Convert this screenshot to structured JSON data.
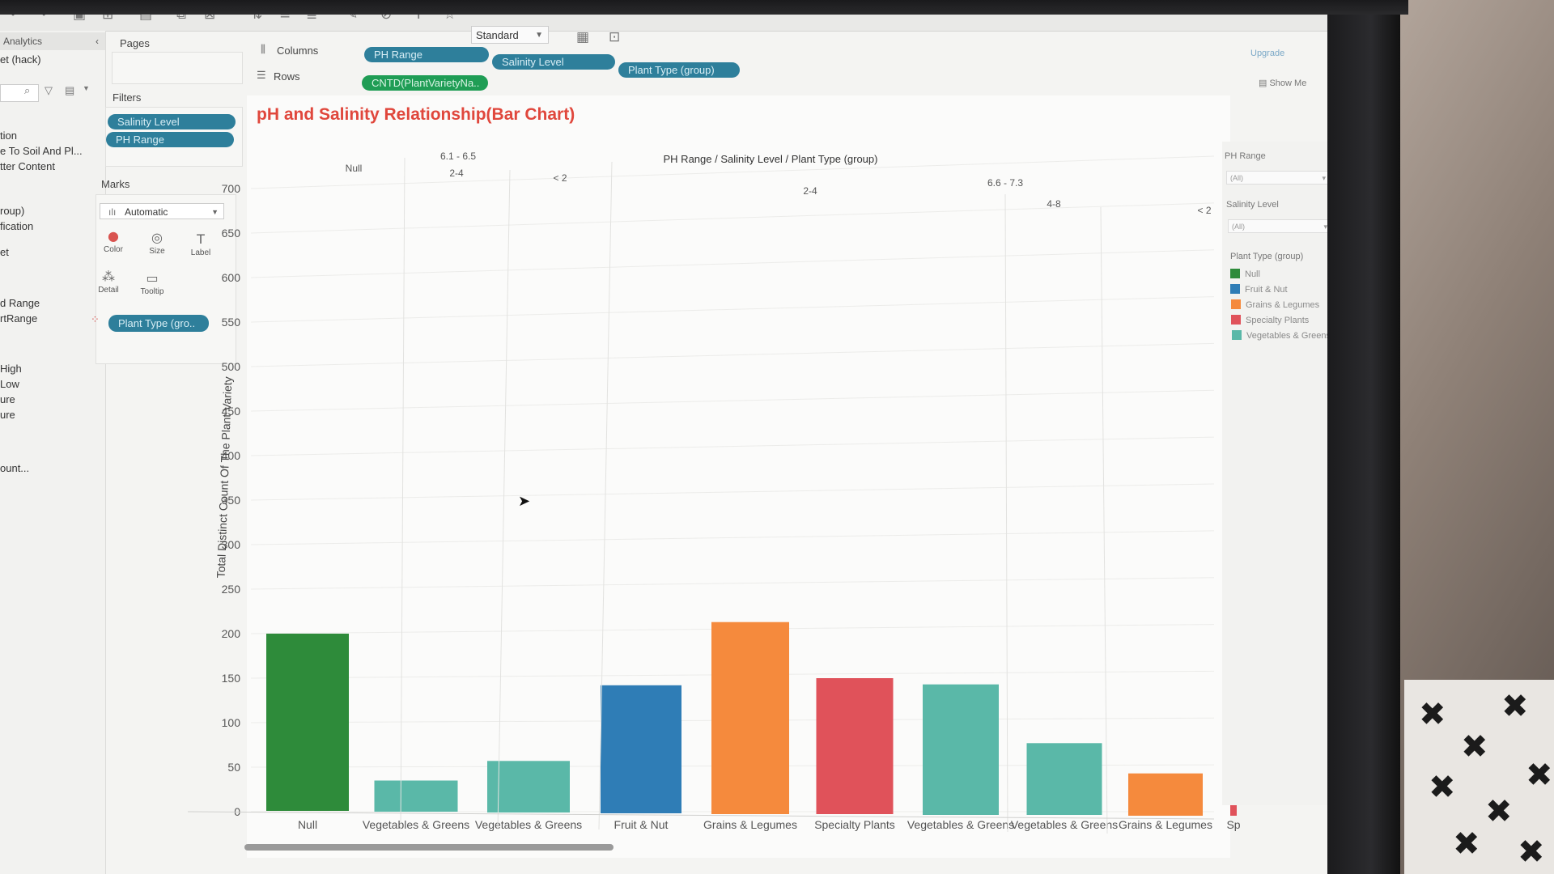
{
  "toolbar": {
    "format_select": "Standard",
    "upgrade": "Upgrade",
    "show_me": "Show Me"
  },
  "data_pane": {
    "analytics_tab": "Analytics",
    "datasource": "et (hack)",
    "fields": [
      "tion",
      "e To Soil And Pl...",
      "tter Content",
      "roup)",
      "fication",
      "et",
      "d Range",
      "rtRange",
      "High",
      "Low",
      "ure",
      "ure",
      "ount..."
    ]
  },
  "pages": {
    "title": "Pages"
  },
  "filters": {
    "title": "Filters",
    "pills": [
      "Salinity Level",
      "PH Range"
    ]
  },
  "marks": {
    "title": "Marks",
    "type": "Automatic",
    "buttons": [
      "Color",
      "Size",
      "Label",
      "Detail",
      "Tooltip"
    ],
    "color_pill": "Plant Type (gro.."
  },
  "shelves": {
    "columns_label": "Columns",
    "rows_label": "Rows",
    "columns": [
      "PH Range",
      "Salinity Level",
      "Plant Type (group)"
    ],
    "rows": [
      "CNTD(PlantVarietyNa.."
    ]
  },
  "right_panel": {
    "ph_filter_title": "PH Range",
    "ph_filter_value": "(All)",
    "salinity_filter_title": "Salinity Level",
    "salinity_filter_value": "(All)",
    "legend_title": "Plant Type (group)",
    "legend": [
      {
        "label": "Null",
        "color": "#2e8b3a"
      },
      {
        "label": "Fruit & Nut",
        "color": "#2f7db6"
      },
      {
        "label": "Grains & Legumes",
        "color": "#f58a3d"
      },
      {
        "label": "Specialty Plants",
        "color": "#e0525a"
      },
      {
        "label": "Vegetables & Greens",
        "color": "#5ab8a8"
      }
    ]
  },
  "chart_data": {
    "type": "bar",
    "title": "pH and Salinity Relationship(Bar Chart)",
    "header_title": "PH Range / Salinity Level / Plant Type (group)",
    "ylabel": "Total Distinct Count Of The Plant Variety",
    "ylim": [
      0,
      700
    ],
    "yticks": [
      0,
      50,
      100,
      150,
      200,
      250,
      300,
      350,
      400,
      450,
      500,
      550,
      600,
      650,
      700
    ],
    "ph_groups": [
      "Null",
      "6.1 - 6.5",
      "",
      "6.6 - 7.3"
    ],
    "salinity_groups": [
      "",
      "2-4",
      "< 2",
      "2-4",
      "4-8",
      "< 2"
    ],
    "categories": [
      "Null",
      "Vegetables & Greens",
      "Vegetables & Greens",
      "Fruit & Nut",
      "Grains & Legumes",
      "Specialty Plants",
      "Vegetables & Greens",
      "Vegetables & Greens",
      "Grains & Legumes",
      "Sp"
    ],
    "values": [
      200,
      35,
      57,
      142,
      213,
      150,
      143,
      77,
      43,
      36
    ],
    "colors": [
      "#2e8b3a",
      "#5ab8a8",
      "#5ab8a8",
      "#2f7db6",
      "#f58a3d",
      "#e0525a",
      "#5ab8a8",
      "#5ab8a8",
      "#f58a3d",
      "#e0525a"
    ]
  }
}
